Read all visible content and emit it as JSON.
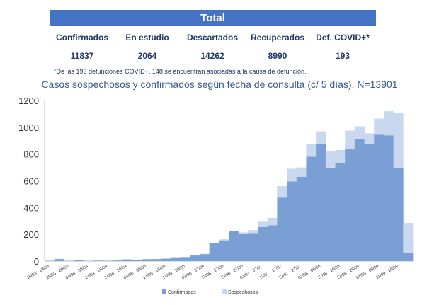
{
  "summary": {
    "banner": "Total",
    "stats": [
      {
        "label": "Confirmados",
        "value": "11837"
      },
      {
        "label": "En estudio",
        "value": "2064"
      },
      {
        "label": "Descartados",
        "value": "14262"
      },
      {
        "label": "Recuperados",
        "value": "8990"
      },
      {
        "label": "Def. COVID+*",
        "value": "193"
      }
    ],
    "footnote": "*De las 193 defunciones COVID+, 148 se encuentran asociadas a la causa de defunción."
  },
  "colors": {
    "confirmados": "#7a9fd4",
    "sospechosos": "#c9d8ee",
    "header": "#4472c4"
  },
  "chart_data": {
    "type": "bar",
    "stacked": true,
    "title": "Casos sospechosos y confirmados según fecha de consulta (c/ 5 días), N=13901",
    "xlabel": "",
    "ylabel": "",
    "ylim": [
      0,
      1200
    ],
    "yticks": [
      "0",
      "200",
      "400",
      "600",
      "800",
      "1000",
      "1200"
    ],
    "grid": false,
    "legend": "bottom",
    "x_tick_labels": [
      "15/03 - 19/03",
      "25/03 - 29/03",
      "04/04 - 08/04",
      "14/04 - 18/04",
      "24/04 - 28/04",
      "04/05 - 08/05",
      "14/05 - 18/05",
      "24/05 - 28/05",
      "03/06 - 07/06",
      "13/06 - 17/06",
      "23/06 - 27/06",
      "03/07 - 07/07",
      "13/07 - 17/07",
      "23/07 - 27/07",
      "02/08 - 06/08",
      "12/08 - 16/08",
      "22/08 - 26/08",
      "01/09 - 05/09",
      "11/09 - 15/09"
    ],
    "series": [
      {
        "name": "Confirmados",
        "values": [
          2,
          15,
          2,
          8,
          2,
          4,
          2,
          5,
          12,
          8,
          14,
          15,
          18,
          28,
          30,
          42,
          52,
          135,
          155,
          225,
          205,
          210,
          255,
          268,
          475,
          595,
          630,
          780,
          875,
          695,
          735,
          835,
          915,
          875,
          945,
          940,
          695,
          60
        ]
      },
      {
        "name": "Sospechosos",
        "values": [
          0,
          3,
          0,
          0,
          1,
          1,
          2,
          1,
          4,
          2,
          2,
          2,
          2,
          2,
          2,
          3,
          3,
          3,
          8,
          2,
          10,
          22,
          40,
          55,
          85,
          95,
          70,
          92,
          95,
          125,
          95,
          140,
          92,
          80,
          120,
          180,
          415,
          225
        ]
      }
    ]
  }
}
